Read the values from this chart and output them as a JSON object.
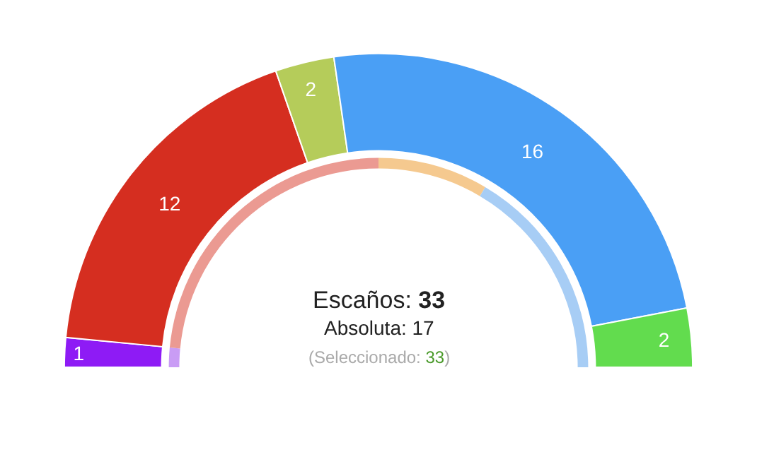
{
  "chart_data": {
    "type": "donut",
    "categories": [
      null,
      null,
      null,
      null,
      null
    ],
    "legend": false,
    "series": [
      {
        "values": [
          1,
          12,
          2,
          16,
          2
        ],
        "colors": [
          "#8e1bf5",
          "#d52e20",
          "#b5cc5a",
          "#4a9ff5",
          "#62dc4e"
        ],
        "value_labels": [
          "1",
          "12",
          "2",
          "16",
          "2"
        ]
      },
      {
        "values": [
          3,
          47,
          null,
          17,
          33
        ],
        "colors": [
          "#c99cf5",
          "#eb9a92",
          null,
          "#f5c98f",
          "#a7cdf5"
        ]
      }
    ],
    "annotations": [
      "Escaños: 33",
      "Absoluta: 17",
      "(Seleccionado: 33)"
    ]
  }
}
